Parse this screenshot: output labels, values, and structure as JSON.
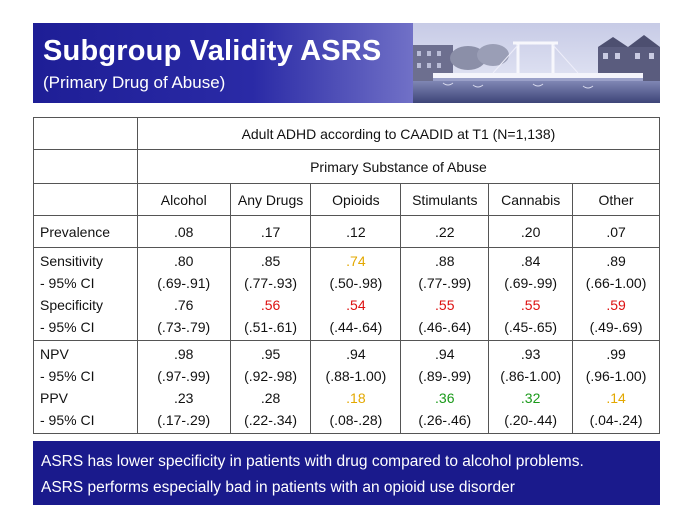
{
  "slide": {
    "title": "Subgroup Validity ASRS",
    "subtitle": "(Primary Drug of Abuse)"
  },
  "table": {
    "header_row1": "Adult ADHD according to CAADID at T1 (N=1,138)",
    "header_row2": "Primary Substance of Abuse",
    "columns": [
      "Alcohol",
      "Any Drugs",
      "Opioids",
      "Stimulants",
      "Cannabis",
      "Other"
    ],
    "prevalence": {
      "label": "Prevalence",
      "values": [
        ".08",
        ".17",
        ".12",
        ".22",
        ".20",
        ".07"
      ]
    },
    "block1": {
      "labels": [
        "Sensitivity",
        "- 95% CI",
        "Specificity",
        "- 95% CI"
      ],
      "cells": [
        [
          ".80",
          "(.69-.91)",
          ".76",
          "(.73-.79)"
        ],
        [
          ".85",
          "(.77-.93)",
          ".56",
          "(.51-.61)"
        ],
        [
          ".74",
          "(.50-.98)",
          ".54",
          "(.44-.64)"
        ],
        [
          ".88",
          "(.77-.99)",
          ".55",
          "(.46-.64)"
        ],
        [
          ".84",
          "(.69-.99)",
          ".55",
          "(.45-.65)"
        ],
        [
          ".89",
          "(.66-1.00)",
          ".59",
          "(.49-.69)"
        ]
      ]
    },
    "block2": {
      "labels": [
        "NPV",
        "- 95% CI",
        "PPV",
        "- 95% CI"
      ],
      "cells": [
        [
          ".98",
          "(.97-.99)",
          ".23",
          "(.17-.29)"
        ],
        [
          ".95",
          "(.92-.98)",
          ".28",
          "(.22-.34)"
        ],
        [
          ".94",
          "(.88-1.00)",
          ".18",
          "(.08-.28)"
        ],
        [
          ".94",
          "(.89-.99)",
          ".36",
          "(.26-.46)"
        ],
        [
          ".93",
          "(.86-1.00)",
          ".32",
          "(.20-.44)"
        ],
        [
          ".99",
          "(.96-1.00)",
          ".14",
          "(.04-.24)"
        ]
      ]
    },
    "highlight_colors": {
      "red": "#dd1111",
      "orange": "#e3a800",
      "green": "#1a9a1a"
    }
  },
  "footer": {
    "line1": "ASRS has lower specificity in patients with drug compared to alcohol problems.",
    "line2": "ASRS performs especially bad in patients with an opioid use disorder"
  }
}
